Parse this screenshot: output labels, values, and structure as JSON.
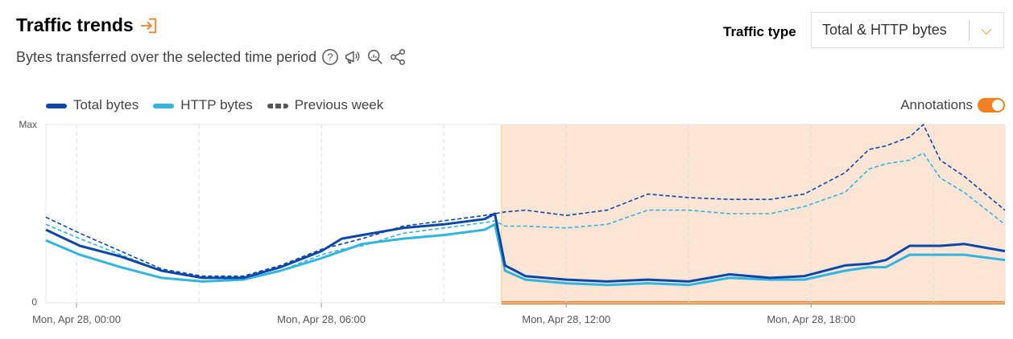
{
  "header": {
    "title": "Traffic trends",
    "subtitle": "Bytes transferred over the selected time period",
    "icons": [
      "expand-icon",
      "help-icon",
      "announcement-icon",
      "analytics-zoom-icon",
      "share-icon"
    ]
  },
  "filter": {
    "label": "Traffic type",
    "value": "Total & HTTP bytes"
  },
  "annotations": {
    "label": "Annotations",
    "enabled": true
  },
  "colors": {
    "accent": "#f38020",
    "total": "#0b47a8",
    "http": "#2fb5e0",
    "annotation_band": "#fce5d4"
  },
  "chart_data": {
    "type": "line",
    "ytick_labels": [
      "Max",
      "0"
    ],
    "ylim": [
      0,
      1
    ],
    "xtick_labels": [
      "Mon, Apr 28, 00:00",
      "Mon, Apr 28, 06:00",
      "Mon, Apr 28, 12:00",
      "Mon, Apr 28, 18:00"
    ],
    "xticks": [
      "Apr 28 00:00",
      "Apr 28 06:00",
      "Apr 28 12:00",
      "Apr 28 18:00"
    ],
    "xlim": [
      "Apr 27 23:15",
      "Apr 28 22:45"
    ],
    "annotation_range": [
      "Apr 28 10:25",
      "Apr 28 22:45"
    ],
    "x": [
      "Apr 27 23:15",
      "Apr 28 00:05",
      "Apr 28 01:05",
      "Apr 28 02:05",
      "Apr 28 03:05",
      "Apr 28 04:05",
      "Apr 28 05:00",
      "Apr 28 06:00",
      "Apr 28 06:30",
      "Apr 28 07:00",
      "Apr 28 08:00",
      "Apr 28 09:00",
      "Apr 28 10:00",
      "Apr 28 10:15",
      "Apr 28 10:30",
      "Apr 28 11:00",
      "Apr 28 12:00",
      "Apr 28 13:00",
      "Apr 28 14:00",
      "Apr 28 15:00",
      "Apr 28 16:00",
      "Apr 28 17:00",
      "Apr 28 17:50",
      "Apr 28 18:50",
      "Apr 28 19:25",
      "Apr 28 19:50",
      "Apr 28 20:25",
      "Apr 28 20:45",
      "Apr 28 21:10",
      "Apr 28 21:45",
      "Apr 28 22:45"
    ],
    "series": [
      {
        "name": "Total bytes",
        "style": "solid",
        "color": "#0b47a8",
        "values": [
          0.41,
          0.32,
          0.26,
          0.18,
          0.14,
          0.14,
          0.2,
          0.29,
          0.36,
          0.38,
          0.42,
          0.44,
          0.47,
          0.5,
          0.21,
          0.15,
          0.13,
          0.12,
          0.13,
          0.12,
          0.16,
          0.14,
          0.15,
          0.21,
          0.22,
          0.24,
          0.32,
          0.32,
          0.32,
          0.33,
          0.29
        ]
      },
      {
        "name": "HTTP bytes",
        "style": "solid",
        "color": "#2fb5e0",
        "values": [
          0.35,
          0.27,
          0.2,
          0.14,
          0.12,
          0.13,
          0.18,
          0.25,
          0.29,
          0.33,
          0.36,
          0.38,
          0.41,
          0.44,
          0.18,
          0.13,
          0.11,
          0.1,
          0.11,
          0.1,
          0.14,
          0.13,
          0.13,
          0.18,
          0.2,
          0.2,
          0.27,
          0.27,
          0.27,
          0.27,
          0.24
        ]
      },
      {
        "name": "Previous week",
        "style": "dashed",
        "color": "#0b47a8",
        "values": [
          0.48,
          0.39,
          0.29,
          0.19,
          0.15,
          0.15,
          0.21,
          0.3,
          0.33,
          0.36,
          0.43,
          0.46,
          0.49,
          0.5,
          0.51,
          0.52,
          0.49,
          0.52,
          0.61,
          0.59,
          0.58,
          0.58,
          0.61,
          0.73,
          0.86,
          0.88,
          0.93,
          1.0,
          0.8,
          0.71,
          0.52
        ]
      },
      {
        "name": "Previous week",
        "style": "dashed",
        "color": "#2fb5e0",
        "values": [
          0.44,
          0.36,
          0.27,
          0.18,
          0.14,
          0.13,
          0.18,
          0.27,
          0.3,
          0.32,
          0.39,
          0.42,
          0.45,
          0.46,
          0.43,
          0.43,
          0.42,
          0.44,
          0.52,
          0.52,
          0.5,
          0.5,
          0.54,
          0.62,
          0.75,
          0.78,
          0.8,
          0.84,
          0.7,
          0.62,
          0.44
        ]
      }
    ],
    "legend": [
      {
        "label": "Total bytes",
        "color": "#0b47a8"
      },
      {
        "label": "HTTP bytes",
        "color": "#2fb5e0"
      },
      {
        "label": "Previous week",
        "color": "#555555"
      }
    ],
    "legend_position": "top-left"
  }
}
